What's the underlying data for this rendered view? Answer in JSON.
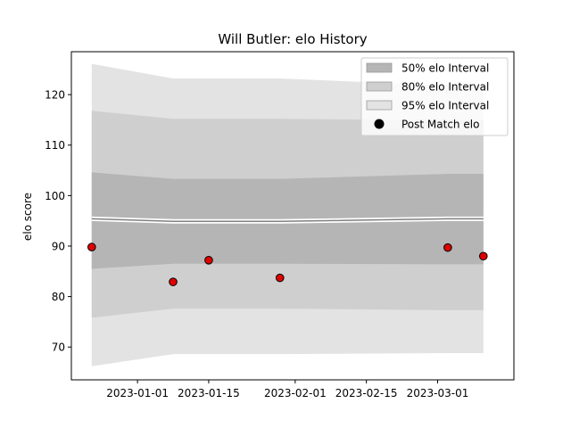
{
  "chart_data": {
    "type": "line",
    "title": "Will Butler: elo History",
    "xlabel": "",
    "ylabel": "elo score",
    "xlim": [
      "2022-12-19",
      "2023-03-16"
    ],
    "ylim": [
      63.5,
      128.5
    ],
    "x_ticks": [
      "2023-01-01",
      "2023-01-15",
      "2023-02-01",
      "2023-02-15",
      "2023-03-01"
    ],
    "y_ticks": [
      70,
      80,
      90,
      100,
      110,
      120
    ],
    "grid": false,
    "legend_position": "top-right",
    "x": [
      "2022-12-23",
      "2023-01-08",
      "2023-01-15",
      "2023-01-29",
      "2023-03-03",
      "2023-03-10"
    ],
    "mean": [
      95.4,
      94.9,
      94.9,
      94.9,
      95.4,
      95.4
    ],
    "bands": [
      {
        "name": "95% elo Interval",
        "color": "#e3e3e3",
        "lower": [
          66.2,
          68.6,
          68.6,
          68.6,
          68.8,
          68.8
        ],
        "upper": [
          126.1,
          123.2,
          123.2,
          123.2,
          121.8,
          121.8
        ]
      },
      {
        "name": "80% elo Interval",
        "color": "#cfcfcf",
        "lower": [
          75.8,
          77.6,
          77.6,
          77.6,
          77.3,
          77.3
        ],
        "upper": [
          116.8,
          115.2,
          115.2,
          115.2,
          114.9,
          114.9
        ]
      },
      {
        "name": "50% elo Interval",
        "color": "#b5b5b5",
        "lower": [
          85.5,
          86.5,
          86.5,
          86.5,
          86.4,
          86.4
        ],
        "upper": [
          104.6,
          103.3,
          103.3,
          103.3,
          104.3,
          104.3
        ]
      }
    ],
    "points": {
      "name": "Post Match elo",
      "color": "#e00000",
      "x": [
        "2022-12-23",
        "2023-01-08",
        "2023-01-15",
        "2023-01-29",
        "2023-03-03",
        "2023-03-10"
      ],
      "y": [
        89.8,
        82.9,
        87.2,
        83.7,
        89.7,
        88.0
      ]
    },
    "legend": [
      "50% elo Interval",
      "80% elo Interval",
      "95% elo Interval",
      "Post Match elo"
    ]
  }
}
